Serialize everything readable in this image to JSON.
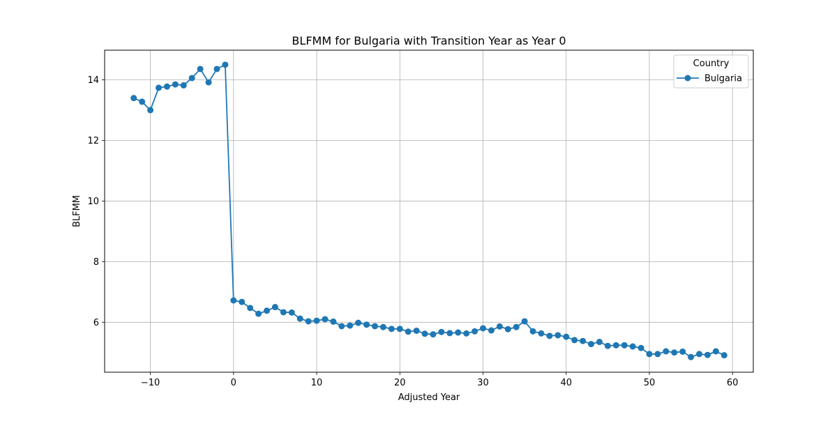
{
  "chart_data": {
    "type": "line",
    "title": "BLFMM for Bulgaria with Transition Year as Year 0",
    "xlabel": "Adjusted Year",
    "ylabel": "BLFMM",
    "xlim": [
      -15.5,
      62.5
    ],
    "ylim": [
      4.35,
      14.98
    ],
    "x_ticks": [
      -10,
      0,
      10,
      20,
      30,
      40,
      50,
      60
    ],
    "x_tick_labels": [
      "−10",
      "0",
      "10",
      "20",
      "30",
      "40",
      "50",
      "60"
    ],
    "y_ticks": [
      6,
      8,
      10,
      12,
      14
    ],
    "y_tick_labels": [
      "6",
      "8",
      "10",
      "12",
      "14"
    ],
    "grid": true,
    "legend": {
      "title": "Country",
      "placement": "top-right"
    },
    "colors": {
      "series": "#1f77b4",
      "grid": "#b0b0b0",
      "frame": "#000000",
      "legend_border": "#cccccc"
    },
    "series": [
      {
        "name": "Bulgaria",
        "marker": "circle",
        "x": [
          -12,
          -11,
          -10,
          -9,
          -8,
          -7,
          -6,
          -5,
          -4,
          -3,
          -2,
          -1,
          0,
          1,
          2,
          3,
          4,
          5,
          6,
          7,
          8,
          9,
          10,
          11,
          12,
          13,
          14,
          15,
          16,
          17,
          18,
          19,
          20,
          21,
          22,
          23,
          24,
          25,
          26,
          27,
          28,
          29,
          30,
          31,
          32,
          33,
          34,
          35,
          36,
          37,
          38,
          39,
          40,
          41,
          42,
          43,
          44,
          45,
          46,
          47,
          48,
          49,
          50,
          51,
          52,
          53,
          54,
          55,
          56,
          57,
          58,
          59
        ],
        "y": [
          13.4,
          13.28,
          13.0,
          13.74,
          13.78,
          13.85,
          13.82,
          14.06,
          14.36,
          13.92,
          14.36,
          14.5,
          6.72,
          6.67,
          6.47,
          6.28,
          6.38,
          6.5,
          6.33,
          6.32,
          6.12,
          6.03,
          6.05,
          6.1,
          6.02,
          5.87,
          5.89,
          5.98,
          5.92,
          5.87,
          5.84,
          5.78,
          5.78,
          5.69,
          5.72,
          5.62,
          5.6,
          5.68,
          5.64,
          5.66,
          5.63,
          5.7,
          5.8,
          5.73,
          5.86,
          5.77,
          5.84,
          6.03,
          5.7,
          5.63,
          5.55,
          5.57,
          5.52,
          5.41,
          5.38,
          5.28,
          5.35,
          5.22,
          5.24,
          5.24,
          5.2,
          5.15,
          4.95,
          4.95,
          5.04,
          5.0,
          5.03,
          4.85,
          4.95,
          4.92,
          5.04,
          4.91
        ]
      }
    ]
  }
}
